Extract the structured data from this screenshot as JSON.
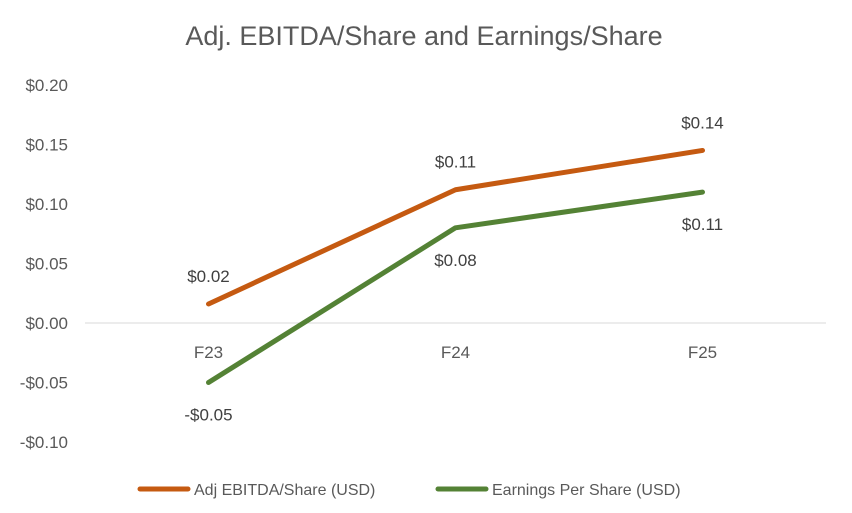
{
  "chart_data": {
    "type": "line",
    "title": "Adj. EBITDA/Share and Earnings/Share",
    "xlabel": "",
    "ylabel": "",
    "categories": [
      "F23",
      "F24",
      "F25"
    ],
    "ylim": [
      -0.1,
      0.2
    ],
    "yticks": [
      0.2,
      0.15,
      0.1,
      0.05,
      0.0,
      -0.05,
      -0.1
    ],
    "ytick_labels": [
      "$0.20",
      "$0.15",
      "$0.10",
      "$0.05",
      "$0.00",
      "-$0.05",
      "-$0.10"
    ],
    "grid": false,
    "legend_position": "bottom",
    "series": [
      {
        "name": "Adj EBITDA/Share (USD)",
        "color": "#C55A11",
        "values": [
          0.016,
          0.112,
          0.145
        ],
        "labels": [
          "$0.02",
          "$0.11",
          "$0.14"
        ],
        "label_position": "above"
      },
      {
        "name": "Earnings Per Share (USD)",
        "color": "#548235",
        "values": [
          -0.05,
          0.08,
          0.11
        ],
        "labels": [
          "-$0.05",
          "$0.08",
          "$0.11"
        ],
        "label_position": "below"
      }
    ]
  }
}
